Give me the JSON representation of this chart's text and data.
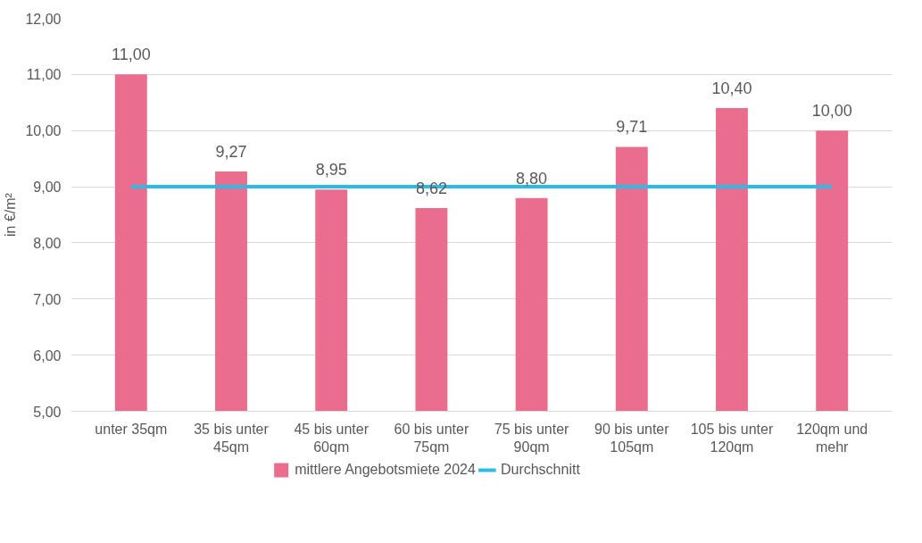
{
  "chart_data": {
    "type": "bar",
    "ylabel": "in €/m²",
    "categories": [
      "unter 35qm",
      "35 bis unter 45qm",
      "45 bis unter 60qm",
      "60 bis unter 75qm",
      "75 bis unter 90qm",
      "90 bis unter 105qm",
      "105 bis unter 120qm",
      "120qm und mehr"
    ],
    "series": [
      {
        "name": "mittlere Angebotsmiete 2024",
        "color": "#eb6d8e",
        "values": [
          11.0,
          9.27,
          8.95,
          8.62,
          8.8,
          9.71,
          10.4,
          10.0
        ],
        "value_labels": [
          "11,00",
          "9,27",
          "8,95",
          "8,62",
          "8,80",
          "9,71",
          "10,40",
          "10,00"
        ]
      },
      {
        "name": "Durchschnitt",
        "type": "line",
        "color": "#2bbbe8",
        "values": [
          9.0,
          9.0,
          9.0,
          9.0,
          9.0,
          9.0,
          9.0,
          9.0
        ]
      }
    ],
    "ylim": [
      5,
      12
    ],
    "yticks": [
      {
        "value": 5,
        "label": "5,00"
      },
      {
        "value": 6,
        "label": "6,00"
      },
      {
        "value": 7,
        "label": "7,00"
      },
      {
        "value": 8,
        "label": "8,00"
      },
      {
        "value": 9,
        "label": "9,00"
      },
      {
        "value": 10,
        "label": "10,00"
      },
      {
        "value": 11,
        "label": "11,00"
      },
      {
        "value": 12,
        "label": "12,00"
      }
    ],
    "grid": "y",
    "legend": "bottom"
  }
}
